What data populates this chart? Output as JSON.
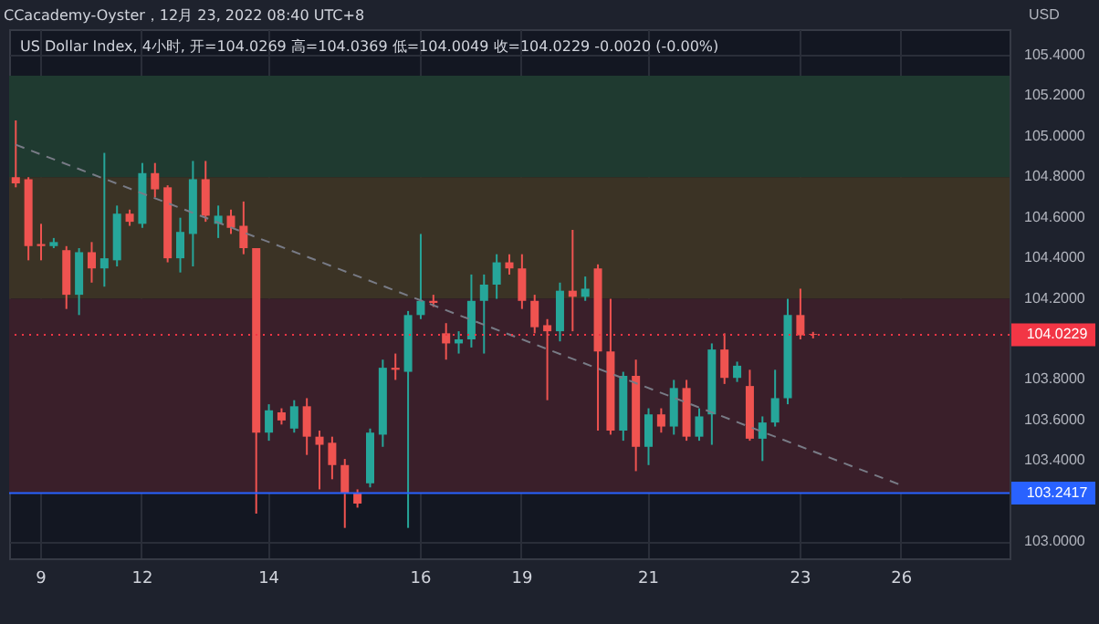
{
  "chart_data": {
    "type": "candlestick",
    "title": "CCacademy-Oyster，12月 23, 2022 08:40 UTC+8",
    "subtitle": "US Dollar Index, 4小时, 开=104.0269 高=104.0369 低=104.0049 收=104.0229 -0.0020 (-0.00%)",
    "ylabel": "USD",
    "categories": [
      null,
      null,
      "9",
      null,
      null,
      null,
      null,
      null,
      null,
      null,
      "12",
      null,
      null,
      null,
      null,
      null,
      null,
      null,
      null,
      null,
      "14",
      null,
      null,
      null,
      null,
      null,
      null,
      null,
      null,
      null,
      null,
      null,
      "16",
      null,
      null,
      null,
      null,
      null,
      null,
      null,
      "19",
      null,
      null,
      null,
      null,
      null,
      null,
      null,
      null,
      null,
      "21",
      null,
      null,
      null,
      null,
      null,
      null,
      null,
      null,
      null,
      null,
      null,
      "23",
      null,
      null,
      null,
      null,
      null,
      null,
      null,
      "26",
      null,
      null,
      null,
      null,
      null,
      null,
      null,
      null
    ],
    "ohlc": [
      [
        104.8,
        105.08,
        104.75,
        104.77
      ],
      [
        104.79,
        104.8,
        104.39,
        104.46
      ],
      [
        104.47,
        104.57,
        104.39,
        104.46
      ],
      [
        104.46,
        104.5,
        104.45,
        104.48
      ],
      [
        104.44,
        104.46,
        104.15,
        104.22
      ],
      [
        104.22,
        104.45,
        104.12,
        104.43
      ],
      [
        104.43,
        104.48,
        104.28,
        104.35
      ],
      [
        104.35,
        104.92,
        104.26,
        104.4
      ],
      [
        104.39,
        104.66,
        104.36,
        104.62
      ],
      [
        104.62,
        104.64,
        104.56,
        104.58
      ],
      [
        104.57,
        104.87,
        104.55,
        104.82
      ],
      [
        104.82,
        104.87,
        104.7,
        104.74
      ],
      [
        104.75,
        104.76,
        104.38,
        104.4
      ],
      [
        104.4,
        104.6,
        104.33,
        104.53
      ],
      [
        104.52,
        104.88,
        104.36,
        104.79
      ],
      [
        104.79,
        104.88,
        104.58,
        104.61
      ],
      [
        104.57,
        104.66,
        104.5,
        104.61
      ],
      [
        104.61,
        104.64,
        104.52,
        104.55
      ],
      [
        104.56,
        104.68,
        104.42,
        104.45
      ],
      [
        104.45,
        104.45,
        103.14,
        103.54
      ],
      [
        103.54,
        103.68,
        103.5,
        103.65
      ],
      [
        103.64,
        103.66,
        103.58,
        103.6
      ],
      [
        103.56,
        103.7,
        103.54,
        103.67
      ],
      [
        103.67,
        103.71,
        103.43,
        103.52
      ],
      [
        103.52,
        103.55,
        103.26,
        103.48
      ],
      [
        103.49,
        103.52,
        103.31,
        103.38
      ],
      [
        103.38,
        103.41,
        103.07,
        103.24
      ],
      [
        103.24,
        103.26,
        103.17,
        103.19
      ],
      [
        103.29,
        103.56,
        103.27,
        103.54
      ],
      [
        103.53,
        103.9,
        103.47,
        103.86
      ],
      [
        103.86,
        103.93,
        103.8,
        103.85
      ],
      [
        103.84,
        104.14,
        103.07,
        104.12
      ],
      [
        104.12,
        104.52,
        104.1,
        104.19
      ],
      [
        104.19,
        104.22,
        104.16,
        104.18
      ],
      [
        104.03,
        104.08,
        103.9,
        103.98
      ],
      [
        103.98,
        104.04,
        103.93,
        104.0
      ],
      [
        104.0,
        104.32,
        103.96,
        104.19
      ],
      [
        104.19,
        104.32,
        103.93,
        104.27
      ],
      [
        104.27,
        104.42,
        104.2,
        104.38
      ],
      [
        104.38,
        104.42,
        104.32,
        104.35
      ],
      [
        104.35,
        104.42,
        104.15,
        104.19
      ],
      [
        104.19,
        104.22,
        104.03,
        104.06
      ],
      [
        104.07,
        104.1,
        103.7,
        104.04
      ],
      [
        104.04,
        104.28,
        103.99,
        104.24
      ],
      [
        104.24,
        104.54,
        104.04,
        104.21
      ],
      [
        104.21,
        104.31,
        104.19,
        104.25
      ],
      [
        104.35,
        104.37,
        103.55,
        103.94
      ],
      [
        103.94,
        104.2,
        103.53,
        103.55
      ],
      [
        103.55,
        103.84,
        103.5,
        103.82
      ],
      [
        103.82,
        103.9,
        103.35,
        103.47
      ],
      [
        103.47,
        103.66,
        103.38,
        103.63
      ],
      [
        103.63,
        103.66,
        103.54,
        103.57
      ],
      [
        103.57,
        103.8,
        103.53,
        103.76
      ],
      [
        103.76,
        103.8,
        103.5,
        103.52
      ],
      [
        103.52,
        103.66,
        103.5,
        103.62
      ],
      [
        103.63,
        103.98,
        103.48,
        103.95
      ],
      [
        103.95,
        104.03,
        103.78,
        103.81
      ],
      [
        103.81,
        103.89,
        103.79,
        103.87
      ],
      [
        103.77,
        103.85,
        103.5,
        103.51
      ],
      [
        103.51,
        103.62,
        103.4,
        103.59
      ],
      [
        103.59,
        103.85,
        103.57,
        103.71
      ],
      [
        103.71,
        104.2,
        103.68,
        104.12
      ],
      [
        104.12,
        104.25,
        104.0,
        104.02
      ],
      [
        104.0269,
        104.0369,
        104.0049,
        104.0229
      ],
      null,
      null,
      null,
      null,
      null,
      null,
      null,
      null,
      null,
      null,
      null,
      null,
      null,
      null,
      null
    ],
    "colors": [
      "#ef5350",
      "#ef5350",
      "#ef5350",
      "#26a69a",
      "#ef5350",
      "#26a69a",
      "#ef5350",
      "#26a69a",
      "#26a69a",
      "#ef5350",
      "#26a69a",
      "#ef5350",
      "#ef5350",
      "#26a69a",
      "#26a69a",
      "#ef5350",
      "#26a69a",
      "#ef5350",
      "#ef5350",
      "#ef5350",
      "#26a69a",
      "#ef5350",
      "#26a69a",
      "#ef5350",
      "#ef5350",
      "#ef5350",
      "#ef5350",
      "#ef5350",
      "#26a69a",
      "#26a69a",
      "#ef5350",
      "#26a69a",
      "#26a69a",
      "#ef5350",
      "#ef5350",
      "#26a69a",
      "#26a69a",
      "#26a69a",
      "#26a69a",
      "#ef5350",
      "#ef5350",
      "#ef5350",
      "#ef5350",
      "#26a69a",
      "#ef5350",
      "#26a69a",
      "#ef5350",
      "#ef5350",
      "#26a69a",
      "#ef5350",
      "#26a69a",
      "#ef5350",
      "#26a69a",
      "#ef5350",
      "#26a69a",
      "#26a69a",
      "#ef5350",
      "#26a69a",
      "#ef5350",
      "#26a69a",
      "#26a69a",
      "#26a69a",
      "#ef5350",
      "#ef5350",
      null,
      null,
      null,
      null,
      null,
      null,
      null,
      null,
      null,
      null,
      null,
      null,
      null,
      null,
      null
    ],
    "series": [
      {
        "type": "line",
        "color": "#787b86",
        "line_style": "dashed",
        "values": [
          104.96,
          null,
          null,
          null,
          null,
          null,
          null,
          null,
          null,
          null,
          null,
          null,
          null,
          null,
          null,
          null,
          null,
          null,
          null,
          null,
          null,
          null,
          null,
          null,
          null,
          null,
          null,
          null,
          null,
          null,
          null,
          null,
          null,
          null,
          null,
          null,
          null,
          null,
          null,
          null,
          null,
          null,
          null,
          null,
          null,
          null,
          null,
          null,
          null,
          null,
          null,
          null,
          null,
          null,
          null,
          null,
          null,
          null,
          null,
          null,
          null,
          null,
          null,
          null,
          null,
          null,
          null,
          null,
          null,
          null,
          103.28,
          null,
          null,
          null,
          null,
          null,
          null,
          null,
          null
        ]
      }
    ],
    "ylim": [
      102.92,
      105.53
    ],
    "yticks": [
      {
        "value": 103,
        "label": "103.0000"
      },
      {
        "value": 103.4,
        "label": "103.4000"
      },
      {
        "value": 103.6,
        "label": "103.6000"
      },
      {
        "value": 103.8,
        "label": "103.8000"
      },
      {
        "value": 104.2,
        "label": "104.2000"
      },
      {
        "value": 104.4,
        "label": "104.4000"
      },
      {
        "value": 104.6,
        "label": "104.6000"
      },
      {
        "value": 104.8,
        "label": "104.8000"
      },
      {
        "value": 105,
        "label": "105.0000"
      },
      {
        "value": 105.2,
        "label": "105.2000"
      },
      {
        "value": 105.4,
        "label": "105.4000"
      }
    ],
    "bands": [
      {
        "axis": "y",
        "from": 104.8,
        "to": 105.3,
        "color": "#1f3a30"
      },
      {
        "axis": "y",
        "from": 104.2,
        "to": 104.8,
        "color": "#3b3325"
      },
      {
        "axis": "y",
        "from": 103.2417,
        "to": 104.2,
        "color": "#3a1f2a"
      }
    ],
    "ref_lines": [
      {
        "axis": "y",
        "value": 104.0229,
        "label": "104.0229",
        "color": "#f23645",
        "line_style": "dotted"
      },
      {
        "axis": "y",
        "value": 103.2417,
        "label": "103.2417",
        "color": "#2962ff",
        "line_style": "solid"
      }
    ],
    "grid": true
  }
}
